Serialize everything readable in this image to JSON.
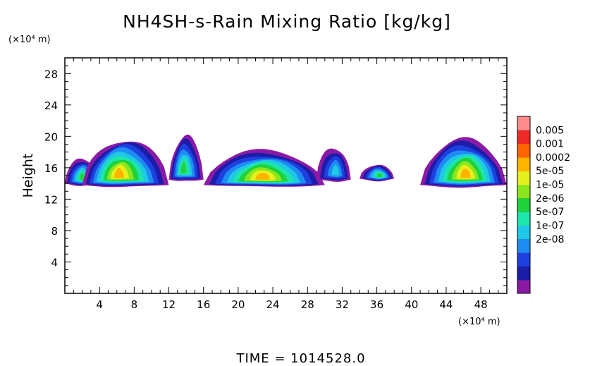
{
  "chart_data": {
    "type": "heatmap",
    "title": "NH4SH-s-Rain Mixing Ratio [kg/kg]",
    "ylabel": "Height",
    "y_unit": "(×10⁴ m)",
    "x_unit": "(×10⁴ m)",
    "footer": "TIME  =  1014528.0",
    "xlim": [
      0,
      51
    ],
    "ylim": [
      0,
      30
    ],
    "x_ticks": [
      "4",
      "8",
      "12",
      "16",
      "20",
      "24",
      "28",
      "32",
      "36",
      "40",
      "44",
      "48"
    ],
    "y_ticks": [
      "4",
      "8",
      "12",
      "16",
      "20",
      "24",
      "28"
    ],
    "colorbar": {
      "labels": [
        "0.005",
        "0.001",
        "0.0002",
        "5e-05",
        "1e-05",
        "2e-06",
        "5e-07",
        "1e-07",
        "2e-08"
      ],
      "colors": [
        "#8a1aa6",
        "#1c1ca8",
        "#1e40e0",
        "#1e8cf0",
        "#1ec8e6",
        "#1ee6aa",
        "#1ed23c",
        "#8ce61e",
        "#e6f01e",
        "#ffb400",
        "#ff6400",
        "#f02828",
        "#ff8c8c"
      ]
    },
    "cloud_bands": [
      {
        "x": [
          0,
          4
        ],
        "y_bottom": 14.0,
        "y_top": 17.2,
        "peak_level": 6
      },
      {
        "x": [
          2,
          12
        ],
        "y_bottom": 13.8,
        "y_top": 19.6,
        "peak_level": 9
      },
      {
        "x": [
          12,
          16
        ],
        "y_bottom": 14.5,
        "y_top": 20.0,
        "peak_level": 6
      },
      {
        "x": [
          16,
          30
        ],
        "y_bottom": 13.8,
        "y_top": 18.2,
        "peak_level": 9
      },
      {
        "x": [
          29,
          33
        ],
        "y_bottom": 14.5,
        "y_top": 18.6,
        "peak_level": 4
      },
      {
        "x": [
          34,
          38
        ],
        "y_bottom": 14.6,
        "y_top": 16.4,
        "peak_level": 6
      },
      {
        "x": [
          41,
          51
        ],
        "y_bottom": 13.8,
        "y_top": 19.6,
        "peak_level": 9
      }
    ]
  }
}
